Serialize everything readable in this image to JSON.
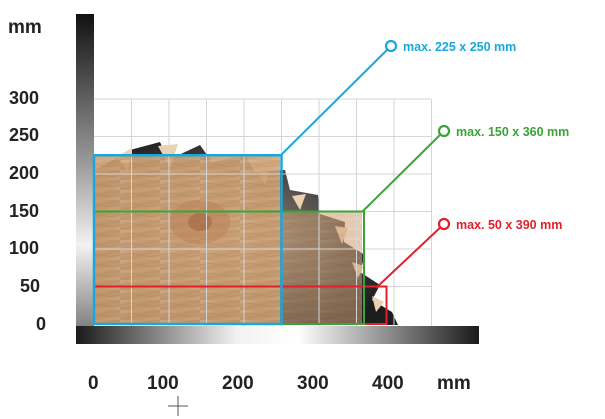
{
  "y_unit": "mm",
  "x_unit": "mm",
  "y_ticks": [
    "300",
    "250",
    "200",
    "150",
    "100",
    "50",
    "0"
  ],
  "x_ticks": [
    "0",
    "100",
    "200",
    "300",
    "400"
  ],
  "capacities": [
    {
      "label": "max. 225 x 250 mm",
      "color": "#1aa7dd"
    },
    {
      "label": "max. 150 x 360 mm",
      "color": "#3aa437"
    },
    {
      "label": "max. 50 x 390 mm",
      "color": "#e2202c"
    }
  ],
  "chart_data": {
    "type": "diagram",
    "title": "",
    "xlabel": "mm",
    "ylabel": "mm",
    "x_ticks": [
      0,
      100,
      200,
      300,
      400
    ],
    "y_ticks": [
      0,
      50,
      100,
      150,
      200,
      250,
      300
    ],
    "rectangles": [
      {
        "label": "max. 225 x 250 mm",
        "width_mm": 250,
        "height_mm": 225,
        "color": "#1aa7dd"
      },
      {
        "label": "max. 150 x 360 mm",
        "width_mm": 360,
        "height_mm": 150,
        "color": "#3aa437"
      },
      {
        "label": "max. 50 x 390 mm",
        "width_mm": 390,
        "height_mm": 50,
        "color": "#e2202c"
      }
    ]
  }
}
